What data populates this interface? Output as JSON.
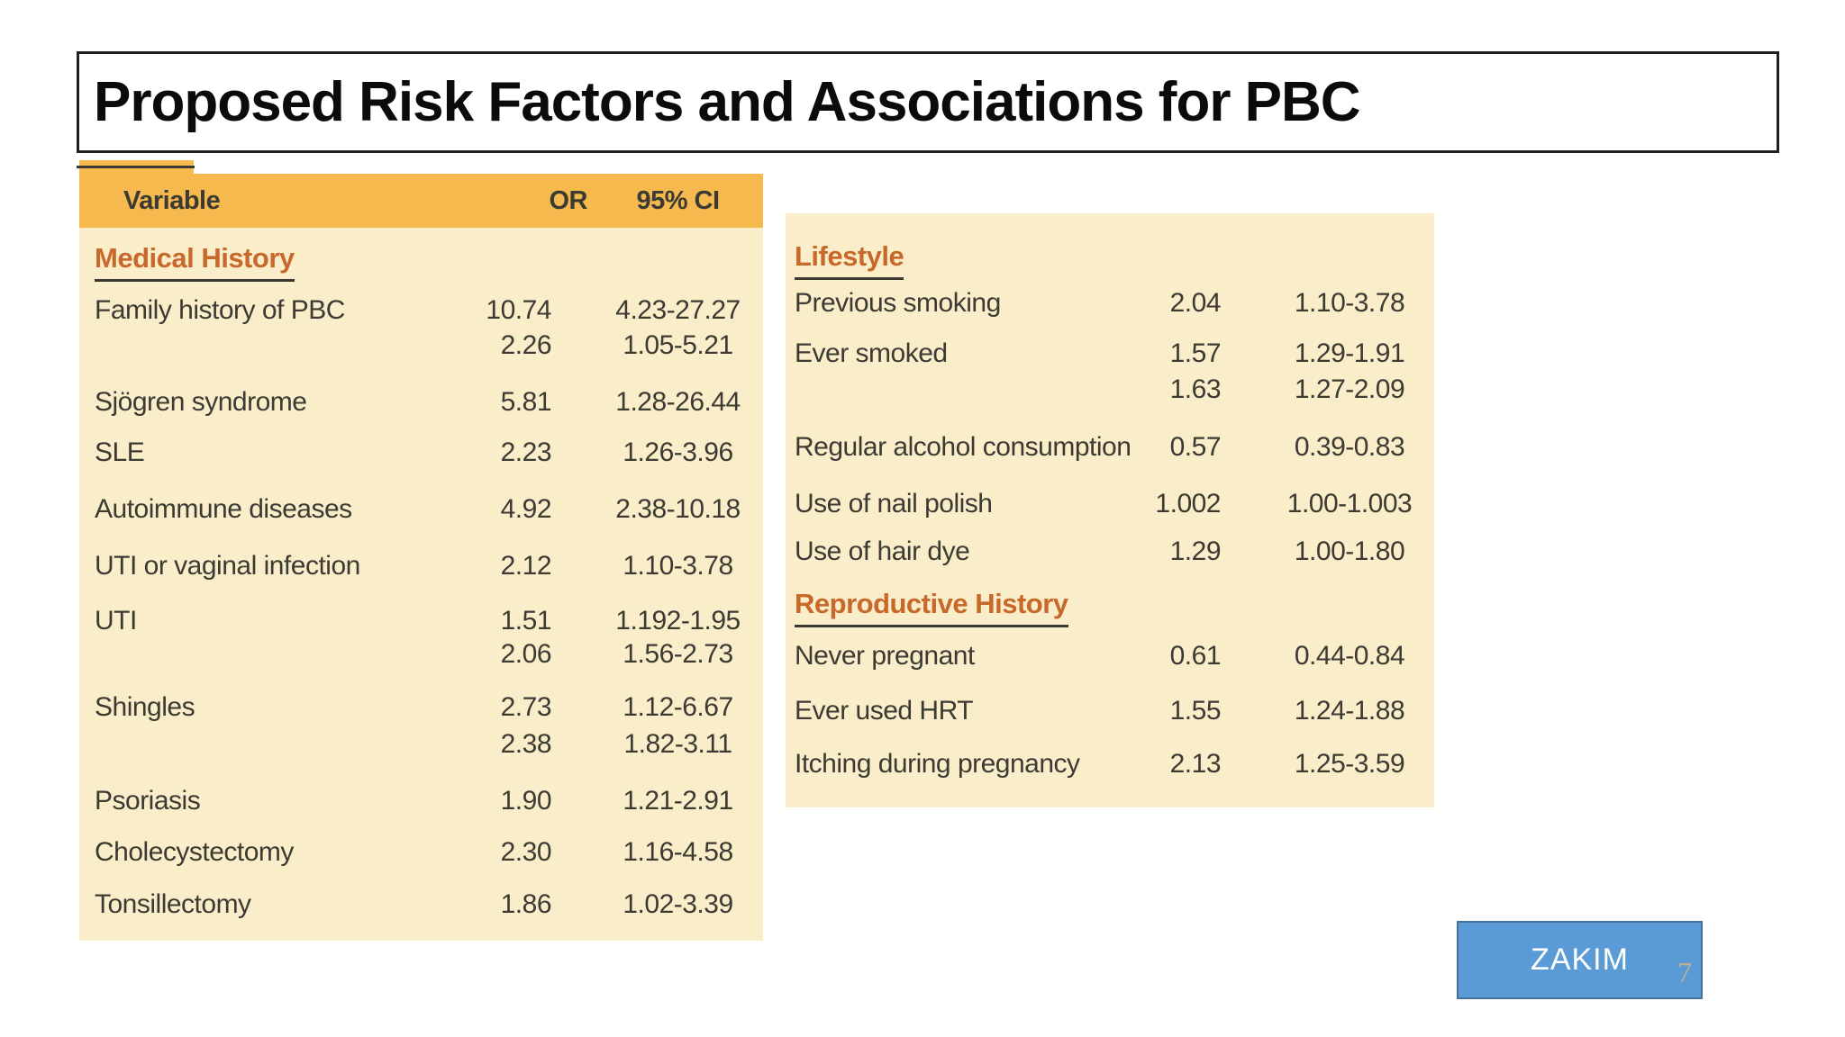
{
  "title": "Proposed Risk Factors and Associations for PBC",
  "table": {
    "header": {
      "variable": "Variable",
      "or": "OR",
      "ci": "95% CI"
    },
    "left_panel": {
      "section": "Medical History",
      "rows": [
        {
          "label": "Family history of PBC",
          "lines": [
            {
              "or": "10.74",
              "ci": "4.23-27.27"
            },
            {
              "or": "2.26",
              "ci": "1.05-5.21"
            }
          ]
        },
        {
          "label": "Sjögren syndrome",
          "lines": [
            {
              "or": "5.81",
              "ci": "1.28-26.44"
            }
          ]
        },
        {
          "label": "SLE",
          "lines": [
            {
              "or": "2.23",
              "ci": "1.26-3.96"
            }
          ]
        },
        {
          "label": "Autoimmune diseases",
          "lines": [
            {
              "or": "4.92",
              "ci": "2.38-10.18"
            }
          ]
        },
        {
          "label": "UTI or vaginal infection",
          "lines": [
            {
              "or": "2.12",
              "ci": "1.10-3.78"
            }
          ]
        },
        {
          "label": "UTI",
          "lines": [
            {
              "or": "1.51",
              "ci": "1.192-1.95"
            },
            {
              "or": "2.06",
              "ci": "1.56-2.73"
            }
          ]
        },
        {
          "label": "Shingles",
          "lines": [
            {
              "or": "2.73",
              "ci": "1.12-6.67"
            },
            {
              "or": "2.38",
              "ci": "1.82-3.11"
            }
          ]
        },
        {
          "label": "Psoriasis",
          "lines": [
            {
              "or": "1.90",
              "ci": "1.21-2.91"
            }
          ]
        },
        {
          "label": "Cholecystectomy",
          "lines": [
            {
              "or": "2.30",
              "ci": "1.16-4.58"
            }
          ]
        },
        {
          "label": "Tonsillectomy",
          "lines": [
            {
              "or": "1.86",
              "ci": "1.02-3.39"
            }
          ]
        }
      ]
    },
    "right_panel": {
      "sections": [
        {
          "heading": "Lifestyle",
          "rows": [
            {
              "label": "Previous smoking",
              "lines": [
                {
                  "or": "2.04",
                  "ci": "1.10-3.78"
                }
              ]
            },
            {
              "label": "Ever smoked",
              "lines": [
                {
                  "or": "1.57",
                  "ci": "1.29-1.91"
                },
                {
                  "or": "1.63",
                  "ci": "1.27-2.09"
                }
              ]
            },
            {
              "label": "Regular alcohol consumption",
              "lines": [
                {
                  "or": "0.57",
                  "ci": "0.39-0.83"
                }
              ]
            },
            {
              "label": "Use of nail polish",
              "lines": [
                {
                  "or": "1.002",
                  "ci": "1.00-1.003"
                }
              ]
            },
            {
              "label": "Use of hair dye",
              "lines": [
                {
                  "or": "1.29",
                  "ci": "1.00-1.80"
                }
              ]
            }
          ]
        },
        {
          "heading": "Reproductive History",
          "rows": [
            {
              "label": "Never pregnant",
              "lines": [
                {
                  "or": "0.61",
                  "ci": "0.44-0.84"
                }
              ]
            },
            {
              "label": "Ever used HRT",
              "lines": [
                {
                  "or": "1.55",
                  "ci": "1.24-1.88"
                }
              ]
            },
            {
              "label": "Itching during pregnancy",
              "lines": [
                {
                  "or": "2.13",
                  "ci": "1.25-3.59"
                }
              ]
            }
          ]
        }
      ]
    }
  },
  "button": {
    "label": "ZAKIM"
  },
  "page_number": "7",
  "colors": {
    "header_band": "#f5b94e",
    "panel_cream": "#faedc9",
    "section_heading": "#c8682b",
    "body_text": "#3b3a33",
    "button_fill": "#5b9bd5",
    "button_border": "#41719c"
  }
}
